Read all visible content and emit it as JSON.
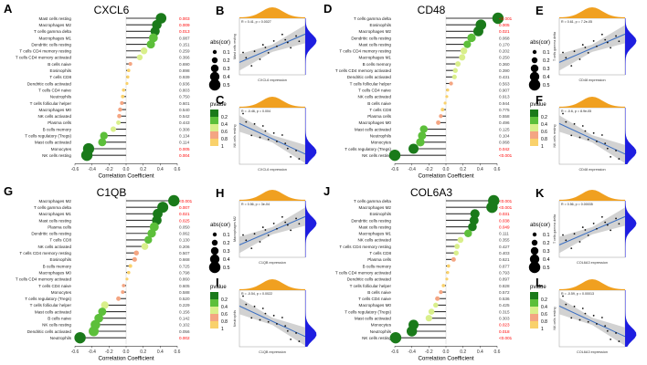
{
  "colors": {
    "stem": "#333333",
    "pval_sig": "#ff0000",
    "pval_ns": "#444444",
    "scale": [
      "#1a7a1a",
      "#5cbf3a",
      "#d9ef8b",
      "#f4a582",
      "#f9d16b"
    ],
    "density": "#f0a020",
    "density_r": "#1e1ee0",
    "regline": "#3b6fc2",
    "ci": "#c7c7c7"
  },
  "panels": [
    {
      "letter": "A",
      "gene": "CXCL6",
      "rows": [
        {
          "cell": "Mast cells resting",
          "cor": 0.41,
          "p": "0.003",
          "sig": true
        },
        {
          "cell": "Macrophages M2",
          "cor": 0.36,
          "p": "0.009",
          "sig": true
        },
        {
          "cell": "T cells gamma delta",
          "cor": 0.34,
          "p": "0.013",
          "sig": true
        },
        {
          "cell": "Macrophages M1",
          "cor": 0.32,
          "p": "0.087",
          "sig": false
        },
        {
          "cell": "Dendritic cells resting",
          "cor": 0.29,
          "p": "0.151",
          "sig": false
        },
        {
          "cell": "T cells CD4 memory resting",
          "cor": 0.21,
          "p": "0.259",
          "sig": false
        },
        {
          "cell": "T cells CD4 memory activated",
          "cor": 0.16,
          "p": "0.366",
          "sig": false
        },
        {
          "cell": "B cells naive",
          "cor": 0.05,
          "p": "0.690",
          "sig": false
        },
        {
          "cell": "Eosinophils",
          "cor": 0.03,
          "p": "0.898",
          "sig": false
        },
        {
          "cell": "T cells CD8",
          "cor": 0.02,
          "p": "0.939",
          "sig": false
        },
        {
          "cell": "Dendritic cells activated",
          "cor": 0.01,
          "p": "0.936",
          "sig": false
        },
        {
          "cell": "T cells CD4 naive",
          "cor": -0.03,
          "p": "0.803",
          "sig": false
        },
        {
          "cell": "Neutrophils",
          "cor": -0.04,
          "p": "0.750",
          "sig": false
        },
        {
          "cell": "T cells follicular helper",
          "cor": -0.05,
          "p": "0.601",
          "sig": false
        },
        {
          "cell": "Macrophages M0",
          "cor": -0.07,
          "p": "0.540",
          "sig": false
        },
        {
          "cell": "NK cells activated",
          "cor": -0.08,
          "p": "0.542",
          "sig": false
        },
        {
          "cell": "Plasma cells",
          "cor": -0.09,
          "p": "0.443",
          "sig": false
        },
        {
          "cell": "B cells memory",
          "cor": -0.15,
          "p": "0.308",
          "sig": false
        },
        {
          "cell": "T cells regulatory (Tregs)",
          "cor": -0.26,
          "p": "0.134",
          "sig": false
        },
        {
          "cell": "Mast cells activated",
          "cor": -0.28,
          "p": "0.114",
          "sig": false
        },
        {
          "cell": "Monocytes",
          "cor": -0.44,
          "p": "0.005",
          "sig": true
        },
        {
          "cell": "NK cells resting",
          "cor": -0.46,
          "p": "0.004",
          "sig": true
        }
      ]
    },
    {
      "letter": "D",
      "gene": "CD48",
      "rows": [
        {
          "cell": "T cells gamma delta",
          "cor": 0.61,
          "p": "<0.001",
          "sig": true
        },
        {
          "cell": "Eosinophils",
          "cor": 0.41,
          "p": "0.005",
          "sig": true
        },
        {
          "cell": "Macrophages M2",
          "cor": 0.38,
          "p": "0.021",
          "sig": true
        },
        {
          "cell": "Dendritic cells resting",
          "cor": 0.3,
          "p": "0.068",
          "sig": false
        },
        {
          "cell": "Mast cells resting",
          "cor": 0.25,
          "p": "0.170",
          "sig": false
        },
        {
          "cell": "T cells CD4 memory resting",
          "cor": 0.21,
          "p": "0.202",
          "sig": false
        },
        {
          "cell": "Macrophages M1",
          "cor": 0.19,
          "p": "0.250",
          "sig": false
        },
        {
          "cell": "B cells memory",
          "cor": 0.14,
          "p": "0.360",
          "sig": false
        },
        {
          "cell": "T cells CD4 memory activated",
          "cor": 0.11,
          "p": "0.390",
          "sig": false
        },
        {
          "cell": "Dendritic cells activated",
          "cor": 0.1,
          "p": "0.431",
          "sig": false
        },
        {
          "cell": "T cells follicular helper",
          "cor": 0.06,
          "p": "0.563",
          "sig": false
        },
        {
          "cell": "T cells CD4 naive",
          "cor": 0.02,
          "p": "0.907",
          "sig": false
        },
        {
          "cell": "NK cells activated",
          "cor": 0.01,
          "p": "0.913",
          "sig": false
        },
        {
          "cell": "B cells naive",
          "cor": -0.01,
          "p": "0.944",
          "sig": false
        },
        {
          "cell": "T cells CD8",
          "cor": -0.04,
          "p": "0.775",
          "sig": false
        },
        {
          "cell": "Plasma cells",
          "cor": -0.06,
          "p": "0.558",
          "sig": false
        },
        {
          "cell": "Macrophages M0",
          "cor": -0.09,
          "p": "0.496",
          "sig": false
        },
        {
          "cell": "Mast cells activated",
          "cor": -0.26,
          "p": "0.125",
          "sig": false
        },
        {
          "cell": "Neutrophils",
          "cor": -0.28,
          "p": "0.104",
          "sig": false
        },
        {
          "cell": "Monocytes",
          "cor": -0.3,
          "p": "0.068",
          "sig": false
        },
        {
          "cell": "T cells regulatory (Tregs)",
          "cor": -0.38,
          "p": "0.042",
          "sig": true
        },
        {
          "cell": "NK cells resting",
          "cor": -0.6,
          "p": "<0.001",
          "sig": true
        }
      ]
    },
    {
      "letter": "G",
      "gene": "C1QB",
      "rows": [
        {
          "cell": "Macrophages M2",
          "cor": 0.56,
          "p": "<0.001",
          "sig": true
        },
        {
          "cell": "T cells gamma delta",
          "cor": 0.43,
          "p": "0.007",
          "sig": true
        },
        {
          "cell": "Macrophages M1",
          "cor": 0.37,
          "p": "0.021",
          "sig": true
        },
        {
          "cell": "Mast cells resting",
          "cor": 0.36,
          "p": "0.025",
          "sig": true
        },
        {
          "cell": "Plasma cells",
          "cor": 0.33,
          "p": "0.050",
          "sig": false
        },
        {
          "cell": "Dendritic cells resting",
          "cor": 0.3,
          "p": "0.062",
          "sig": false
        },
        {
          "cell": "T cells CD8",
          "cor": 0.26,
          "p": "0.130",
          "sig": false
        },
        {
          "cell": "NK cells activated",
          "cor": 0.22,
          "p": "0.206",
          "sig": false
        },
        {
          "cell": "T cells CD4 memory resting",
          "cor": 0.12,
          "p": "0.507",
          "sig": false
        },
        {
          "cell": "Eosinophils",
          "cor": 0.1,
          "p": "0.668",
          "sig": false
        },
        {
          "cell": "B cells memory",
          "cor": 0.05,
          "p": "0.725",
          "sig": false
        },
        {
          "cell": "Macrophages M0",
          "cor": 0.03,
          "p": "0.798",
          "sig": false
        },
        {
          "cell": "T cells CD4 memory activated",
          "cor": 0.01,
          "p": "0.860",
          "sig": false
        },
        {
          "cell": "T cells CD4 naive",
          "cor": -0.03,
          "p": "0.605",
          "sig": false
        },
        {
          "cell": "Monocytes",
          "cor": -0.04,
          "p": "0.588",
          "sig": false
        },
        {
          "cell": "T cells regulatory (Tregs)",
          "cor": -0.09,
          "p": "0.520",
          "sig": false
        },
        {
          "cell": "T cells follicular helper",
          "cor": -0.25,
          "p": "0.229",
          "sig": false
        },
        {
          "cell": "Mast cells activated",
          "cor": -0.28,
          "p": "0.156",
          "sig": false
        },
        {
          "cell": "B cells naive",
          "cor": -0.32,
          "p": "0.142",
          "sig": false
        },
        {
          "cell": "NK cells resting",
          "cor": -0.36,
          "p": "0.102",
          "sig": false
        },
        {
          "cell": "Dendritic cells activated",
          "cor": -0.38,
          "p": "0.056",
          "sig": false
        },
        {
          "cell": "Neutrophils",
          "cor": -0.54,
          "p": "0.002",
          "sig": true
        }
      ]
    },
    {
      "letter": "J",
      "gene": "COL6A3",
      "rows": [
        {
          "cell": "T cells gamma delta",
          "cor": 0.56,
          "p": "<0.001",
          "sig": true
        },
        {
          "cell": "Macrophages M2",
          "cor": 0.54,
          "p": "<0.001",
          "sig": true
        },
        {
          "cell": "Eosinophils",
          "cor": 0.34,
          "p": "0.031",
          "sig": true
        },
        {
          "cell": "Dendritic cells resting",
          "cor": 0.33,
          "p": "0.038",
          "sig": true
        },
        {
          "cell": "Mast cells resting",
          "cor": 0.31,
          "p": "0.049",
          "sig": true
        },
        {
          "cell": "Macrophages M1",
          "cor": 0.26,
          "p": "0.111",
          "sig": false
        },
        {
          "cell": "NK cells activated",
          "cor": 0.17,
          "p": "0.355",
          "sig": false
        },
        {
          "cell": "T cells CD4 memory resting",
          "cor": 0.13,
          "p": "0.427",
          "sig": false
        },
        {
          "cell": "T cells CD8",
          "cor": 0.12,
          "p": "0.403",
          "sig": false
        },
        {
          "cell": "Plasma cells",
          "cor": 0.09,
          "p": "0.621",
          "sig": false
        },
        {
          "cell": "B cells memory",
          "cor": 0.03,
          "p": "0.877",
          "sig": false
        },
        {
          "cell": "T cells CD4 memory activated",
          "cor": 0.02,
          "p": "0.793",
          "sig": false
        },
        {
          "cell": "Dendritic cells activated",
          "cor": 0.01,
          "p": "0.897",
          "sig": false
        },
        {
          "cell": "T cells follicular helper",
          "cor": -0.03,
          "p": "0.828",
          "sig": false
        },
        {
          "cell": "B cells naive",
          "cor": -0.06,
          "p": "0.572",
          "sig": false
        },
        {
          "cell": "T cells CD4 naive",
          "cor": -0.1,
          "p": "0.536",
          "sig": false
        },
        {
          "cell": "Macrophages M0",
          "cor": -0.12,
          "p": "0.425",
          "sig": false
        },
        {
          "cell": "T cells regulatory (Tregs)",
          "cor": -0.17,
          "p": "0.315",
          "sig": false
        },
        {
          "cell": "Mast cells activated",
          "cor": -0.2,
          "p": "0.303",
          "sig": false
        },
        {
          "cell": "Monocytes",
          "cor": -0.38,
          "p": "0.023",
          "sig": true
        },
        {
          "cell": "Neutrophils",
          "cor": -0.4,
          "p": "0.018",
          "sig": true
        },
        {
          "cell": "NK cells resting",
          "cor": -0.59,
          "p": "<0.001",
          "sig": true
        }
      ]
    }
  ],
  "lollipop": {
    "xlabel": "Correlation Coefficient",
    "xlim": [
      -0.6,
      0.6
    ],
    "xticks": [
      "-0.6",
      "-0.4",
      "-0.2",
      "0.0",
      "0.2",
      "0.4",
      "0.6"
    ]
  },
  "legends": {
    "abs_title": "abs(cor)",
    "abs_values": [
      "0.1",
      "0.2",
      "0.3",
      "0.4",
      "0.5"
    ],
    "pval_title": "pvalue",
    "pval_labels": [
      "0.2",
      "0.4",
      "0.6",
      "0.8",
      "1"
    ]
  },
  "scatters": [
    {
      "letter": "B",
      "annotation": "R = 0.41, p = 0.0027",
      "xlabel": "CXCL6 expression",
      "ylabel": "Mast cells resting",
      "trend": "up"
    },
    {
      "letter": "C",
      "annotation": "R = -0.46, p = 0.004",
      "xlabel": "CXCL6 expression",
      "ylabel": "NK cells resting",
      "trend": "down"
    },
    {
      "letter": "E",
      "annotation": "R = 0.61, p = 7.2e-05",
      "xlabel": "CD48 expression",
      "ylabel": "T cells gamma delta",
      "trend": "up"
    },
    {
      "letter": "F",
      "annotation": "R = -0.6, p = 8.9e-05",
      "xlabel": "CD48 expression",
      "ylabel": "NK cells resting",
      "trend": "down"
    },
    {
      "letter": "H",
      "annotation": "R = 0.56, p = 3e-04",
      "xlabel": "C1QB expression",
      "ylabel": "Macrophages M2",
      "trend": "up"
    },
    {
      "letter": "I",
      "annotation": "R = -0.54, p = 0.0022",
      "xlabel": "C1QB expression",
      "ylabel": "Neutrophils",
      "trend": "down"
    },
    {
      "letter": "K",
      "annotation": "R = 0.56, p = 0.00035",
      "xlabel": "COL6A3 expression",
      "ylabel": "T cells gamma delta",
      "trend": "up"
    },
    {
      "letter": "L",
      "annotation": "R = -0.59, p = 0.00013",
      "xlabel": "COL6A3 expression",
      "ylabel": "NK cells resting",
      "trend": "down"
    }
  ],
  "chart_data": [
    {
      "type": "scatter",
      "title": "CXCL6",
      "xlabel": "Correlation Coefficient",
      "ylabel": "",
      "xlim": [
        -0.6,
        0.6
      ],
      "categories": [
        "Mast cells resting",
        "Macrophages M2",
        "T cells gamma delta",
        "Macrophages M1",
        "Dendritic cells resting",
        "T cells CD4 memory resting",
        "T cells CD4 memory activated",
        "B cells naive",
        "Eosinophils",
        "T cells CD8",
        "Dendritic cells activated",
        "T cells CD4 naive",
        "Neutrophils",
        "T cells follicular helper",
        "Macrophages M0",
        "NK cells activated",
        "Plasma cells",
        "B cells memory",
        "T cells regulatory (Tregs)",
        "Mast cells activated",
        "Monocytes",
        "NK cells resting"
      ],
      "values": [
        0.41,
        0.36,
        0.34,
        0.32,
        0.29,
        0.21,
        0.16,
        0.05,
        0.03,
        0.02,
        0.01,
        -0.03,
        -0.04,
        -0.05,
        -0.07,
        -0.08,
        -0.09,
        -0.15,
        -0.26,
        -0.28,
        -0.44,
        -0.46
      ]
    },
    {
      "type": "scatter",
      "title": "CD48",
      "xlabel": "Correlation Coefficient",
      "ylabel": "",
      "xlim": [
        -0.6,
        0.6
      ],
      "categories": [
        "T cells gamma delta",
        "Eosinophils",
        "Macrophages M2",
        "Dendritic cells resting",
        "Mast cells resting",
        "T cells CD4 memory resting",
        "Macrophages M1",
        "B cells memory",
        "T cells CD4 memory activated",
        "Dendritic cells activated",
        "T cells follicular helper",
        "T cells CD4 naive",
        "NK cells activated",
        "B cells naive",
        "T cells CD8",
        "Plasma cells",
        "Macrophages M0",
        "Mast cells activated",
        "Neutrophils",
        "Monocytes",
        "T cells regulatory (Tregs)",
        "NK cells resting"
      ],
      "values": [
        0.61,
        0.41,
        0.38,
        0.3,
        0.25,
        0.21,
        0.19,
        0.14,
        0.11,
        0.1,
        0.06,
        0.02,
        0.01,
        -0.01,
        -0.04,
        -0.06,
        -0.09,
        -0.26,
        -0.28,
        -0.3,
        -0.38,
        -0.6
      ]
    },
    {
      "type": "scatter",
      "title": "C1QB",
      "xlabel": "Correlation Coefficient",
      "ylabel": "",
      "xlim": [
        -0.6,
        0.6
      ],
      "categories": [
        "Macrophages M2",
        "T cells gamma delta",
        "Macrophages M1",
        "Mast cells resting",
        "Plasma cells",
        "Dendritic cells resting",
        "T cells CD8",
        "NK cells activated",
        "T cells CD4 memory resting",
        "Eosinophils",
        "B cells memory",
        "Macrophages M0",
        "T cells CD4 memory activated",
        "T cells CD4 naive",
        "Monocytes",
        "T cells regulatory (Tregs)",
        "T cells follicular helper",
        "Mast cells activated",
        "B cells naive",
        "NK cells resting",
        "Dendritic cells activated",
        "Neutrophils"
      ],
      "values": [
        0.56,
        0.43,
        0.37,
        0.36,
        0.33,
        0.3,
        0.26,
        0.22,
        0.12,
        0.1,
        0.05,
        0.03,
        0.01,
        -0.03,
        -0.04,
        -0.09,
        -0.25,
        -0.28,
        -0.32,
        -0.36,
        -0.38,
        -0.54
      ]
    },
    {
      "type": "scatter",
      "title": "COL6A3",
      "xlabel": "Correlation Coefficient",
      "ylabel": "",
      "xlim": [
        -0.6,
        0.6
      ],
      "categories": [
        "T cells gamma delta",
        "Macrophages M2",
        "Eosinophils",
        "Dendritic cells resting",
        "Mast cells resting",
        "Macrophages M1",
        "NK cells activated",
        "T cells CD4 memory resting",
        "T cells CD8",
        "Plasma cells",
        "B cells memory",
        "T cells CD4 memory activated",
        "Dendritic cells activated",
        "T cells follicular helper",
        "B cells naive",
        "T cells CD4 naive",
        "Macrophages M0",
        "T cells regulatory (Tregs)",
        "Mast cells activated",
        "Monocytes",
        "Neutrophils",
        "NK cells resting"
      ],
      "values": [
        0.56,
        0.54,
        0.34,
        0.33,
        0.31,
        0.26,
        0.17,
        0.13,
        0.12,
        0.09,
        0.03,
        0.02,
        0.01,
        -0.03,
        -0.06,
        -0.1,
        -0.12,
        -0.17,
        -0.2,
        -0.38,
        -0.4,
        -0.59
      ]
    }
  ]
}
